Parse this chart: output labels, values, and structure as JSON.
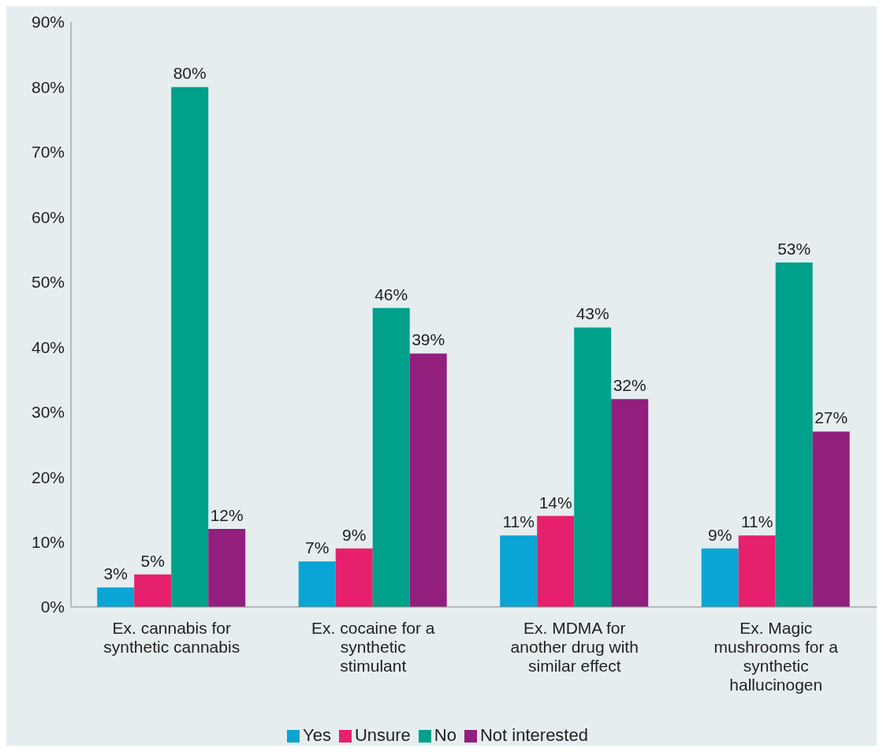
{
  "chart_data": {
    "type": "bar",
    "categories": [
      "Ex. cannabis for synthetic cannabis",
      "Ex. cocaine for a synthetic stimulant",
      "Ex. MDMA for another drug with similar effect",
      "Ex. Magic mushrooms for a synthetic hallucinogen"
    ],
    "series": [
      {
        "name": "Yes",
        "color": "#0aa5d5",
        "values": [
          3,
          7,
          11,
          9
        ],
        "value_labels": [
          "3%",
          "7%",
          "11%",
          "9%"
        ]
      },
      {
        "name": "Unsure",
        "color": "#e6206c",
        "values": [
          5,
          9,
          14,
          11
        ],
        "value_labels": [
          "5%",
          "9%",
          "14%",
          "11%"
        ]
      },
      {
        "name": "No",
        "color": "#00a08a",
        "values": [
          80,
          46,
          43,
          53
        ],
        "value_labels": [
          "80%",
          "46%",
          "43%",
          "53%"
        ]
      },
      {
        "name": "Not interested",
        "color": "#921f7e",
        "values": [
          12,
          39,
          32,
          27
        ],
        "value_labels": [
          "12%",
          "39%",
          "32%",
          "27%"
        ]
      }
    ],
    "ylim": [
      0,
      90
    ],
    "yticks": [
      {
        "value": 0,
        "label": "0%"
      },
      {
        "value": 10,
        "label": "10%"
      },
      {
        "value": 20,
        "label": "20%"
      },
      {
        "value": 30,
        "label": "30%"
      },
      {
        "value": 40,
        "label": "40%"
      },
      {
        "value": 50,
        "label": "50%"
      },
      {
        "value": 60,
        "label": "60%"
      },
      {
        "value": 70,
        "label": "70%"
      },
      {
        "value": 80,
        "label": "80%"
      },
      {
        "value": 90,
        "label": "90%"
      }
    ],
    "grid": false,
    "legend": "bottom"
  }
}
